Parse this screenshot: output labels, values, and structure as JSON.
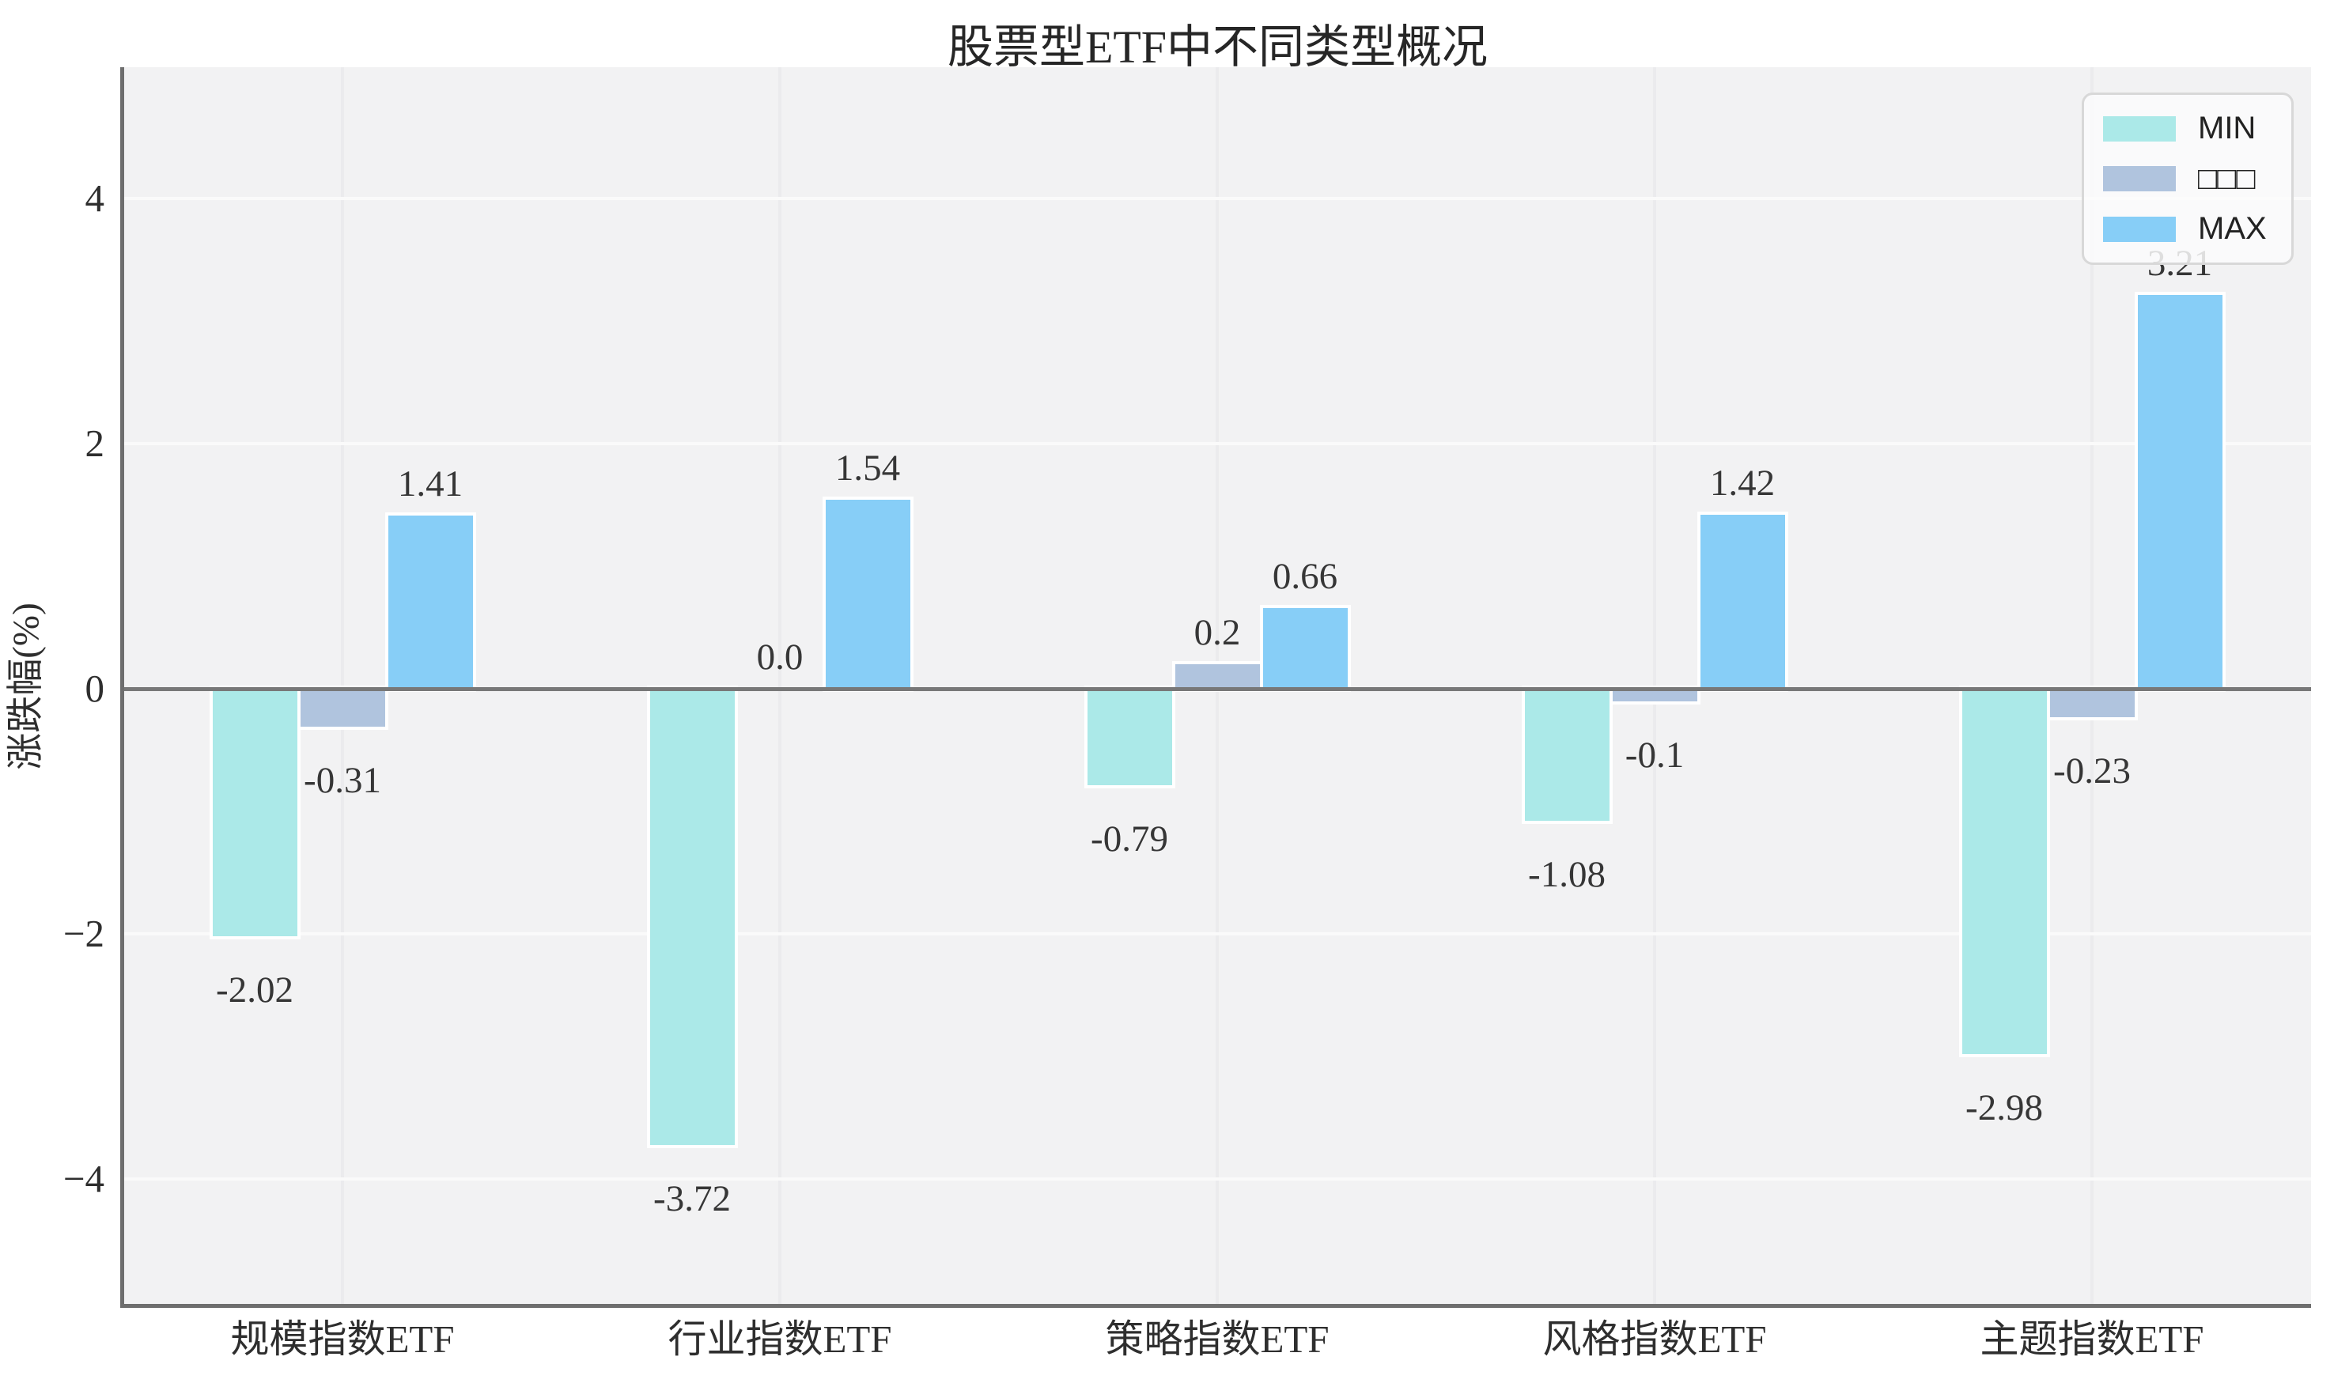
{
  "chart_data": {
    "type": "bar",
    "title": "股票型ETF中不同类型概况",
    "xlabel": "",
    "ylabel": "涨跌幅(%)",
    "categories": [
      "规模指数ETF",
      "行业指数ETF",
      "策略指数ETF",
      "风格指数ETF",
      "主题指数ETF"
    ],
    "series": [
      {
        "name": "MIN",
        "color": "#abe9e8",
        "values": [
          -2.02,
          -3.72,
          -0.79,
          -1.08,
          -2.98
        ],
        "labels": [
          "-2.02",
          "-3.72",
          "-0.79",
          "-1.08",
          "-2.98"
        ]
      },
      {
        "name": "□□□",
        "color": "#b0c4de",
        "values": [
          -0.31,
          0.0,
          0.2,
          -0.1,
          -0.23
        ],
        "labels": [
          "-0.31",
          "0.0",
          "0.2",
          "-0.1",
          "-0.23"
        ]
      },
      {
        "name": "MAX",
        "color": "#87cef7",
        "values": [
          1.41,
          1.54,
          0.66,
          1.42,
          3.21
        ],
        "labels": [
          "1.41",
          "1.54",
          "0.66",
          "1.42",
          "3.21"
        ]
      }
    ],
    "yticks": {
      "values": [
        4,
        2,
        0,
        -2,
        -4
      ],
      "labels": [
        "4",
        "2",
        "0",
        "−2",
        "−4"
      ]
    },
    "ylim": [
      -5.05,
      5.07
    ],
    "grid": true,
    "legend_position": "upper right",
    "legend_labels": [
      "MIN",
      "□□□",
      "MAX"
    ],
    "colors": {
      "plot_background": "#f2f2f3",
      "figure_background": "#ffffff",
      "spine": "#6e6e6e",
      "zero_line": "#787878",
      "horizontal_grid": "#fafafa",
      "vertical_grid": "#ebebed",
      "bar_edge": "#ffffff",
      "text": "#2e2e2e"
    }
  }
}
